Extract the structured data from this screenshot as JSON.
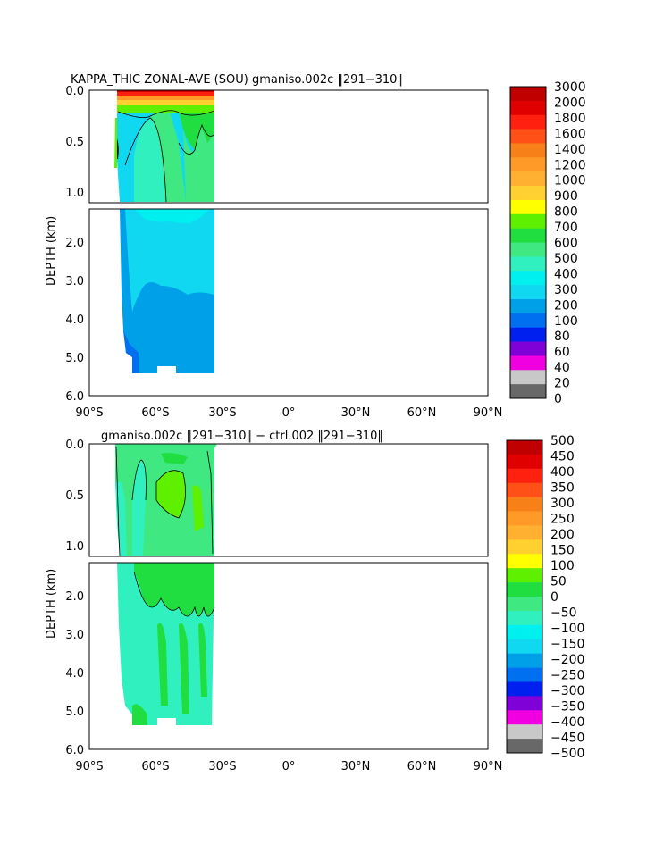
{
  "chart_data": [
    {
      "type": "heatmap",
      "title": "KAPPA_THIC ZONAL-AVE (SOU) gmaniso.002c ‖291−310‖",
      "ylabel": "DEPTH (km)",
      "xlabel": "",
      "x_ticks": [
        "90°S",
        "60°S",
        "30°S",
        "0°",
        "30°N",
        "60°N",
        "90°N"
      ],
      "x_range": [
        -90,
        90
      ],
      "upper_ticks": [
        "0.0",
        "0.5",
        "1.0"
      ],
      "lower_ticks": [
        "2.0",
        "3.0",
        "4.0",
        "5.0",
        "6.0"
      ],
      "upper_range_km": [
        0,
        1.15
      ],
      "lower_range_km": [
        1.15,
        6.0
      ],
      "colorbar_levels": [
        "3000",
        "2000",
        "1800",
        "1600",
        "1400",
        "1200",
        "1000",
        "900",
        "800",
        "700",
        "600",
        "500",
        "400",
        "300",
        "200",
        "100",
        "80",
        "60",
        "40",
        "20",
        "0"
      ],
      "colorbar_colors": [
        "#c00000",
        "#e00000",
        "#ff2010",
        "#ff5018",
        "#f78018",
        "#ff9a28",
        "#ffb030",
        "#ffd030",
        "#ffff00",
        "#5ff000",
        "#20dd40",
        "#3fe880",
        "#30f0c0",
        "#00f0f0",
        "#10d8f0",
        "#00a0e8",
        "#0070f0",
        "#0020f0",
        "#8000d8",
        "#f000e0",
        "#c8c8c8",
        "#686868"
      ]
    },
    {
      "type": "heatmap",
      "title": "gmaniso.002c ‖291−310‖ − ctrl.002 ‖291−310‖",
      "ylabel": "DEPTH (km)",
      "xlabel": "",
      "x_ticks": [
        "90°S",
        "60°S",
        "30°S",
        "0°",
        "30°N",
        "60°N",
        "90°N"
      ],
      "x_range": [
        -90,
        90
      ],
      "upper_ticks": [
        "0.0",
        "0.5",
        "1.0"
      ],
      "lower_ticks": [
        "2.0",
        "3.0",
        "4.0",
        "5.0",
        "6.0"
      ],
      "upper_range_km": [
        0,
        1.15
      ],
      "lower_range_km": [
        1.15,
        6.0
      ],
      "colorbar_levels": [
        "500",
        "450",
        "400",
        "350",
        "300",
        "250",
        "200",
        "150",
        "100",
        "50",
        "0",
        "−50",
        "−100",
        "−150",
        "−200",
        "−250",
        "−300",
        "−350",
        "−400",
        "−450",
        "−500"
      ],
      "colorbar_colors": [
        "#c00000",
        "#e00000",
        "#ff2010",
        "#ff5018",
        "#f78018",
        "#ff9a28",
        "#ffb030",
        "#ffd030",
        "#ffff00",
        "#5ff000",
        "#20dd40",
        "#3fe880",
        "#30f0c0",
        "#00f0f0",
        "#10d8f0",
        "#00a0e8",
        "#0070f0",
        "#0020f0",
        "#8000d8",
        "#f000e0",
        "#c8c8c8",
        "#686868"
      ]
    }
  ],
  "colors": {
    "frame": "#000000",
    "background": "#ffffff"
  }
}
